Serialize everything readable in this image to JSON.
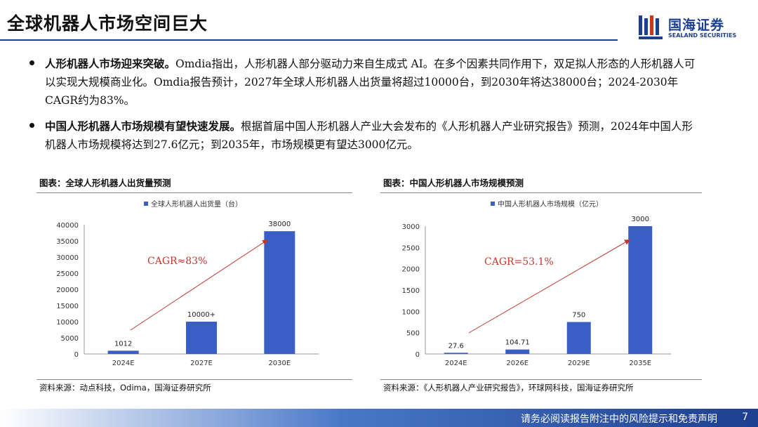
{
  "header": {
    "title": "全球机器人市场空间巨大",
    "logo_cn": "国海证券",
    "logo_en": "SEALAND SECURITIES"
  },
  "bullets": [
    {
      "lead": "人形机器人市场迎来突破。",
      "text": "Omdia指出，人形机器人部分驱动力来自生成式 AI。在多个因素共同作用下，双足拟人形态的人形机器人可以实现大规模商业化。Omdia报告预计，2027年全球人形机器人出货量将超过10000台，到2030年将达38000台；2024-2030年CAGR约为83%。"
    },
    {
      "lead": "中国人形机器人市场规模有望快速发展。",
      "text": "根据首届中国人形机器人产业大会发布的《人形机器人产业研究报告》预测，2024年中国人形机器人市场规模将达到27.6亿元；到2035年，市场规模更有望达3000亿元。"
    }
  ],
  "panels": {
    "left": {
      "title": "图表：全球人形机器人出货量预测",
      "source": "资料来源：动点科技，Odima，国海证券研究所"
    },
    "right": {
      "title": "图表：中国人形机器人市场规模预测",
      "source": "资料来源：《人形机器人产业研究报告》，环球网科技，国海证券研究所"
    }
  },
  "chart_data": [
    {
      "type": "bar",
      "categories": [
        "2024E",
        "2027E",
        "2030E"
      ],
      "series": [
        {
          "name": "全球人形机器人出货量（台）",
          "values": [
            1012,
            10000,
            38000
          ]
        }
      ],
      "data_labels": [
        "1012",
        "10000+",
        "38000"
      ],
      "yticks": [
        "0",
        "5000",
        "10000",
        "15000",
        "20000",
        "25000",
        "30000",
        "35000",
        "40000"
      ],
      "ylim": [
        0,
        40000
      ],
      "annotation": "CAGR≈83%",
      "legend": "top",
      "bar_color": "#3a5fc4",
      "arrow_color": "#c0392b"
    },
    {
      "type": "bar",
      "categories": [
        "2024E",
        "2026E",
        "2029E",
        "2035E"
      ],
      "series": [
        {
          "name": "中国人形机器人市场规模（亿元）",
          "values": [
            27.6,
            104.71,
            750,
            3000
          ]
        }
      ],
      "data_labels": [
        "27.6",
        "104.71",
        "750",
        "3000"
      ],
      "yticks": [
        "0",
        "500",
        "1000",
        "1500",
        "2000",
        "2500",
        "3000"
      ],
      "ylim": [
        0,
        3000
      ],
      "annotation": "CAGR=53.1%",
      "legend": "top",
      "bar_color": "#3a5fc4",
      "arrow_color": "#c0392b"
    }
  ],
  "footer": {
    "disclaimer": "请务必阅读报告附注中的风险提示和免责声明",
    "page": "7"
  }
}
